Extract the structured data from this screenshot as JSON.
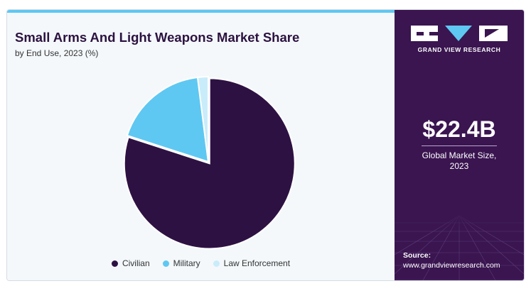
{
  "header": {
    "title": "Small Arms And Light Weapons Market Share",
    "subtitle": "by End Use, 2023 (%)"
  },
  "chart_data": {
    "type": "pie",
    "categories": [
      "Civilian",
      "Military",
      "Law Enforcement"
    ],
    "values": [
      80,
      18,
      2
    ],
    "colors": [
      "#2e1143",
      "#5ec8f2",
      "#c9ecfa"
    ],
    "legend_position": "bottom"
  },
  "sidebar": {
    "brand": "GRAND VIEW RESEARCH",
    "logo_icon": "gvr-logo-icon",
    "market_value": "$22.4B",
    "market_caption_line1": "Global Market Size,",
    "market_caption_line2": "2023",
    "source_label": "Source:",
    "source_url": "www.grandviewresearch.com",
    "background_color": "#3a1550"
  }
}
